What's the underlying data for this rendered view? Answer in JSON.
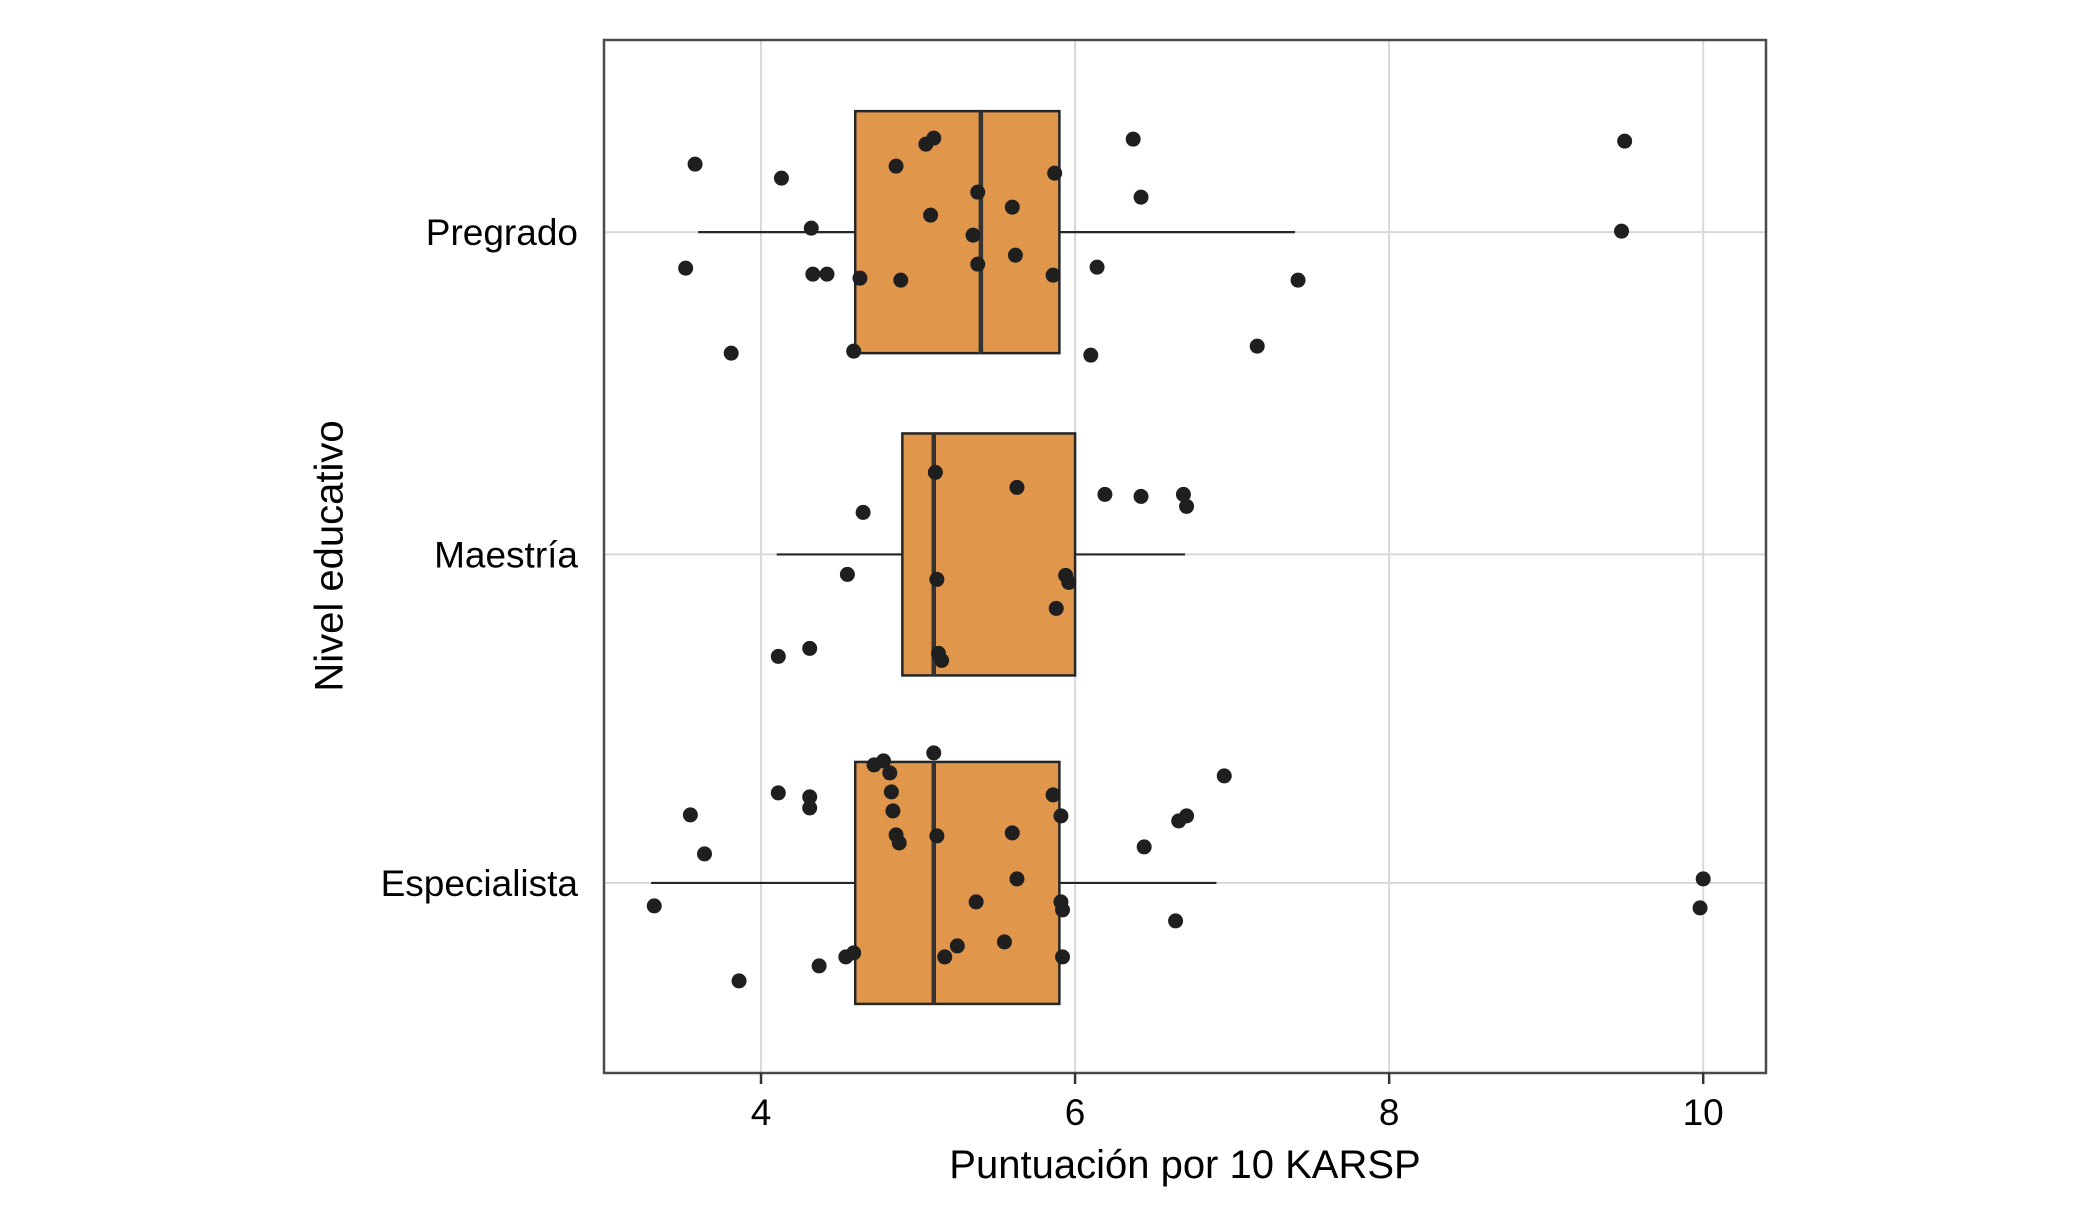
{
  "chart_data": {
    "type": "boxplot",
    "orientation": "horizontal",
    "title": "",
    "xlabel": "Puntuación por 10 KARSP",
    "ylabel": "Nivel educativo",
    "x_ticks": [
      4,
      6,
      8,
      10
    ],
    "xlim": [
      3.0,
      10.4
    ],
    "grid": true,
    "legend": "none",
    "box_fill": "#E0964B",
    "box_stroke": "#262626",
    "median_color": "#333333",
    "whisker_color": "#262626",
    "point_color": "#1f1f1f",
    "grid_color": "#d8d8d8",
    "panel_border_color": "#4a4a4a",
    "tick_color": "#333333",
    "categories": [
      {
        "label": "Pregrado",
        "whisker_low": 3.6,
        "q1": 4.6,
        "median": 5.4,
        "q3": 5.9,
        "whisker_high": 7.4,
        "points": [
          [
            3.58,
            -68
          ],
          [
            3.52,
            36
          ],
          [
            3.81,
            121
          ],
          [
            4.13,
            -54
          ],
          [
            4.32,
            -4
          ],
          [
            4.33,
            42
          ],
          [
            4.42,
            42
          ],
          [
            4.59,
            119
          ],
          [
            4.63,
            46
          ],
          [
            4.86,
            -66
          ],
          [
            4.89,
            48
          ],
          [
            5.05,
            -88
          ],
          [
            5.1,
            -94
          ],
          [
            5.08,
            -17
          ],
          [
            5.35,
            3
          ],
          [
            5.38,
            -40
          ],
          [
            5.38,
            32
          ],
          [
            5.6,
            -25
          ],
          [
            5.62,
            23
          ],
          [
            5.86,
            43
          ],
          [
            5.87,
            -59
          ],
          [
            6.1,
            123
          ],
          [
            6.14,
            35
          ],
          [
            6.37,
            -93
          ],
          [
            6.42,
            -35
          ],
          [
            7.16,
            114
          ],
          [
            7.42,
            48
          ],
          [
            9.5,
            -91
          ],
          [
            9.48,
            -1
          ]
        ]
      },
      {
        "label": "Maestría",
        "whisker_low": 4.1,
        "q1": 4.9,
        "median": 5.1,
        "q3": 6.0,
        "whisker_high": 6.7,
        "points": [
          [
            4.11,
            102
          ],
          [
            4.31,
            94
          ],
          [
            4.55,
            20
          ],
          [
            4.65,
            -42
          ],
          [
            5.11,
            -82
          ],
          [
            5.12,
            25
          ],
          [
            5.13,
            99
          ],
          [
            5.15,
            106
          ],
          [
            5.63,
            -67
          ],
          [
            5.88,
            54
          ],
          [
            5.94,
            21
          ],
          [
            5.96,
            28
          ],
          [
            6.19,
            -60
          ],
          [
            6.42,
            -58
          ],
          [
            6.69,
            -60
          ],
          [
            6.71,
            -48
          ]
        ]
      },
      {
        "label": "Especialista",
        "whisker_low": 3.3,
        "q1": 4.6,
        "median": 5.1,
        "q3": 5.9,
        "whisker_high": 6.9,
        "points": [
          [
            3.32,
            23
          ],
          [
            3.55,
            -68
          ],
          [
            3.64,
            -29
          ],
          [
            3.86,
            98
          ],
          [
            4.11,
            -90
          ],
          [
            4.31,
            -86
          ],
          [
            4.31,
            -75
          ],
          [
            4.37,
            83
          ],
          [
            4.54,
            74
          ],
          [
            4.59,
            70
          ],
          [
            4.72,
            -118
          ],
          [
            4.78,
            -122
          ],
          [
            4.82,
            -110
          ],
          [
            4.83,
            -91
          ],
          [
            4.84,
            -72
          ],
          [
            4.86,
            -48
          ],
          [
            4.88,
            -40
          ],
          [
            5.1,
            -130
          ],
          [
            5.12,
            -47
          ],
          [
            5.17,
            74
          ],
          [
            5.25,
            63
          ],
          [
            5.37,
            19
          ],
          [
            5.55,
            59
          ],
          [
            5.6,
            -50
          ],
          [
            5.63,
            -4
          ],
          [
            5.86,
            -88
          ],
          [
            5.91,
            -67
          ],
          [
            5.91,
            19
          ],
          [
            5.92,
            27
          ],
          [
            5.92,
            74
          ],
          [
            6.44,
            -36
          ],
          [
            6.64,
            38
          ],
          [
            6.66,
            -62
          ],
          [
            6.71,
            -67
          ],
          [
            6.95,
            -107
          ],
          [
            10.0,
            -4
          ],
          [
            9.98,
            25
          ]
        ]
      }
    ]
  }
}
